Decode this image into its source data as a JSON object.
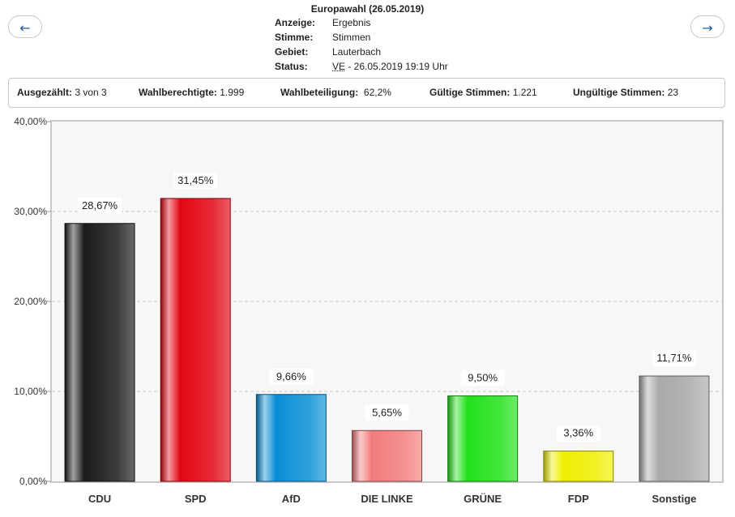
{
  "nav": {
    "prev_label": "←",
    "next_label": "→"
  },
  "header": {
    "title": "Europawahl (26.05.2019)",
    "rows": [
      {
        "label": "Anzeige:",
        "value": "Ergebnis"
      },
      {
        "label": "Stimme:",
        "value": "Stimmen"
      },
      {
        "label": "Gebiet:",
        "value": "Lauterbach"
      },
      {
        "label": "Status:",
        "abbr": "VE",
        "value": " - 26.05.2019 19:19 Uhr"
      }
    ]
  },
  "summary": [
    {
      "label": "Ausgezählt:",
      "value": "3 von 3"
    },
    {
      "label": "Wahlberechtigte:",
      "value": "1.999"
    },
    {
      "label": "Wahlbeteiligung:",
      "value": "62,2%"
    },
    {
      "label": "Gültige Stimmen:",
      "value": "1.221"
    },
    {
      "label": "Ungültige Stimmen:",
      "value": "23"
    }
  ],
  "chart_data": {
    "type": "bar",
    "title": "",
    "xlabel": "",
    "ylabel": "",
    "ylim": [
      0,
      40
    ],
    "yticks": [
      0,
      10,
      20,
      30,
      40
    ],
    "ytick_labels": [
      "0,00%",
      "10,00%",
      "20,00%",
      "30,00%",
      "40,00%"
    ],
    "grid": true,
    "legend": "none",
    "categories": [
      "CDU",
      "SPD",
      "AfD",
      "DIE LINKE",
      "GRÜNE",
      "FDP",
      "Sonstige"
    ],
    "values": [
      28.67,
      31.45,
      9.66,
      5.65,
      9.5,
      3.36,
      11.71
    ],
    "value_labels": [
      "28,67%",
      "31,45%",
      "9,66%",
      "5,65%",
      "9,50%",
      "3,36%",
      "11,71%"
    ],
    "colors": [
      "#1a1a1a",
      "#e30613",
      "#0a8ed6",
      "#f27c7c",
      "#22e11a",
      "#f0ee00",
      "#a9a9a9"
    ]
  }
}
